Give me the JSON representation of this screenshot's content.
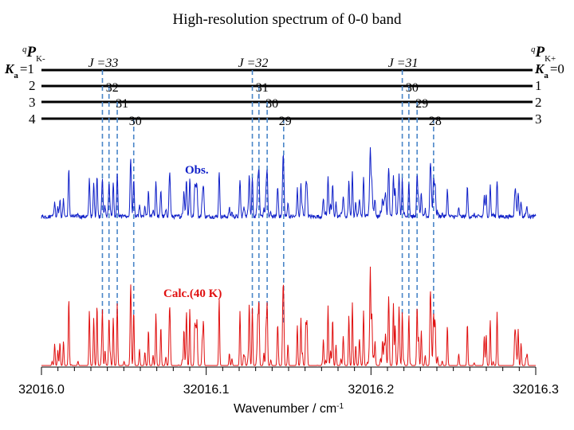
{
  "chart_data": {
    "type": "line",
    "title": "High-resolution spectrum of 0-0 band",
    "xlabel_main": "Wavenumber / cm",
    "xlabel_sup": "-1",
    "xlim": [
      32016.0,
      32016.3
    ],
    "x_ticks": [
      "32016.0",
      "32016.1",
      "32016.2",
      "32016.3"
    ],
    "series": [
      {
        "name": "Obs.",
        "color": "#1020c8"
      },
      {
        "name": "Calc.(40 K)",
        "color": "#e01010"
      }
    ],
    "branches": [
      {
        "label_sup": "q",
        "label_main": "P",
        "label_sub": "K-",
        "ka_prefix": "K",
        "ka_sub": "a",
        "ka_values": [
          "=1",
          "2",
          "3",
          "4"
        ],
        "groups": [
          {
            "label": "J =33",
            "lines": [
              {
                "x": 32016.037,
                "label": ""
              },
              {
                "x": 32016.041,
                "label": "32"
              },
              {
                "x": 32016.046,
                "label": "31"
              },
              {
                "x": 32016.056,
                "label": "30"
              }
            ]
          },
          {
            "label": "J =32",
            "lines": [
              {
                "x": 32016.128,
                "label": ""
              },
              {
                "x": 32016.132,
                "label": "31"
              },
              {
                "x": 32016.137,
                "label": "30"
              },
              {
                "x": 32016.147,
                "label": "29"
              }
            ]
          },
          {
            "label": "J =31",
            "lines": [
              {
                "x": 32016.219,
                "label": ""
              },
              {
                "x": 32016.223,
                "label": "30"
              },
              {
                "x": 32016.228,
                "label": "29"
              },
              {
                "x": 32016.238,
                "label": "28"
              }
            ]
          }
        ]
      },
      {
        "label_sup": "q",
        "label_main": "P",
        "label_sub": "K+",
        "ka_prefix": "K",
        "ka_sub": "a",
        "ka_values": [
          "=0",
          "1",
          "2",
          "3"
        ]
      }
    ]
  }
}
